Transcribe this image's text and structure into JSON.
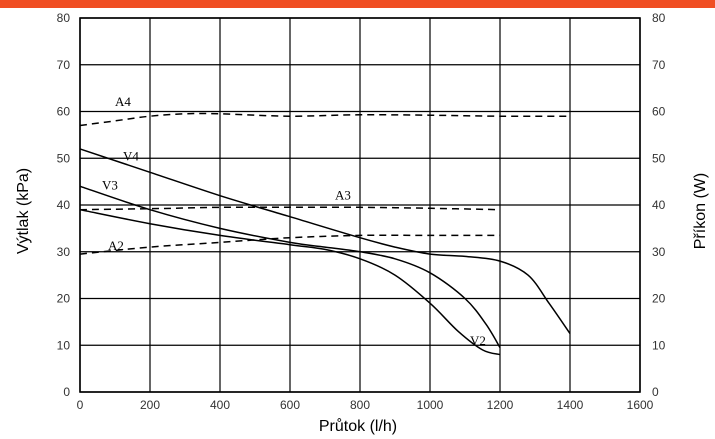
{
  "colors": {
    "accent_bar": "#f04e23",
    "grid": "#000000",
    "curve": "#000000"
  },
  "chart_data": {
    "type": "line",
    "title": "",
    "xlabel": "Průtok (l/h)",
    "ylabel": "Výtlak (kPa)",
    "y2label": "Příkon (W)",
    "xlim": [
      0,
      1600
    ],
    "ylim": [
      0,
      80
    ],
    "y2lim": [
      0,
      80
    ],
    "x_ticks": [
      "0",
      "200",
      "400",
      "600",
      "800",
      "1000",
      "1200",
      "1400",
      "1600"
    ],
    "y_ticks": [
      "0",
      "10",
      "20",
      "30",
      "40",
      "50",
      "60",
      "70",
      "80"
    ],
    "y2_ticks": [
      "0",
      "10",
      "20",
      "30",
      "40",
      "50",
      "60",
      "70",
      "80"
    ],
    "grid": true,
    "series": [
      {
        "name": "V4",
        "style": "solid",
        "axis": "left",
        "x": [
          0,
          200,
          400,
          600,
          800,
          900,
          1000,
          1100,
          1200,
          1280,
          1340,
          1400
        ],
        "y": [
          52,
          47,
          42,
          37.5,
          33,
          31,
          29.5,
          29,
          28,
          25,
          19,
          12.5
        ]
      },
      {
        "name": "V3",
        "style": "solid",
        "axis": "left",
        "x": [
          0,
          200,
          400,
          600,
          700,
          800,
          900,
          1000,
          1100,
          1160,
          1200
        ],
        "y": [
          44,
          39,
          35,
          32,
          31,
          30,
          28.5,
          25.5,
          20,
          14.5,
          9.5
        ]
      },
      {
        "name": "V2",
        "style": "solid",
        "axis": "left",
        "x": [
          0,
          200,
          400,
          600,
          700,
          800,
          900,
          1000,
          1080,
          1150,
          1200
        ],
        "y": [
          39,
          36,
          33.5,
          31.5,
          30.5,
          28.5,
          25,
          19,
          13,
          9,
          8
        ]
      },
      {
        "name": "A4",
        "style": "dashed",
        "axis": "right",
        "x": [
          0,
          100,
          200,
          300,
          400,
          600,
          800,
          1000,
          1200,
          1400
        ],
        "y": [
          57,
          58,
          59,
          59.5,
          59.5,
          59,
          59.3,
          59.2,
          59,
          59
        ]
      },
      {
        "name": "A3",
        "style": "dashed",
        "axis": "right",
        "x": [
          0,
          200,
          400,
          600,
          800,
          1000,
          1200
        ],
        "y": [
          39,
          39.2,
          39.5,
          39.5,
          39.5,
          39.3,
          39
        ]
      },
      {
        "name": "A2",
        "style": "dashed",
        "axis": "right",
        "x": [
          0,
          200,
          400,
          600,
          800,
          1000,
          1200
        ],
        "y": [
          29.5,
          31,
          32,
          33,
          33.5,
          33.5,
          33.5
        ]
      }
    ],
    "annotations": [
      {
        "text": "A4",
        "series": "A4"
      },
      {
        "text": "V4",
        "series": "V4"
      },
      {
        "text": "V3",
        "series": "V3"
      },
      {
        "text": "A3",
        "series": "A3"
      },
      {
        "text": "A2",
        "series": "A2"
      },
      {
        "text": "V2",
        "series": "V2"
      }
    ]
  }
}
